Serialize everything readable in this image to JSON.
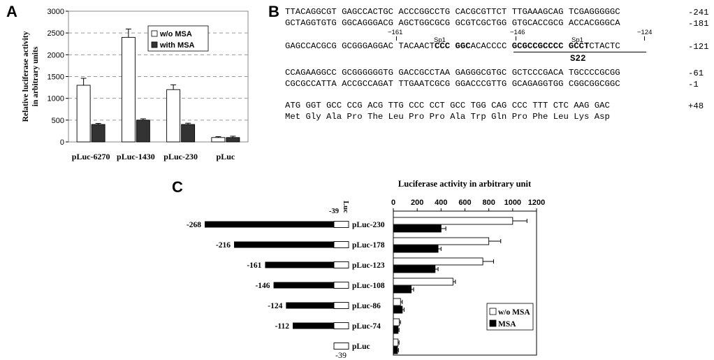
{
  "panels": {
    "a": "A",
    "b": "B",
    "c": "C"
  },
  "chart_data": [
    {
      "type": "bar",
      "panel": "A",
      "ylabel": "Relative luciferase activity in arbitrary units",
      "ylabel_lines": [
        "Relative luciferase activity",
        "in arbitrary units"
      ],
      "categories": [
        "pLuc-6270",
        "pLuc-1430",
        "pLuc-230",
        "pLuc"
      ],
      "series": [
        {
          "name": "w/o MSA",
          "values": [
            1300,
            2400,
            1200,
            100
          ],
          "errors": [
            160,
            190,
            110,
            20
          ],
          "color": "#ffffff"
        },
        {
          "name": "with MSA",
          "values": [
            400,
            500,
            400,
            100
          ],
          "errors": [
            25,
            30,
            30,
            30
          ],
          "color": "#333333"
        }
      ],
      "ylim": [
        0,
        3000
      ],
      "yticks": [
        "0",
        "500",
        "1000",
        "1500",
        "2000",
        "2500",
        "3000"
      ],
      "grid": true,
      "legend": "top-right"
    },
    {
      "type": "bar",
      "orientation": "horizontal",
      "panel": "C",
      "title": "Luciferase activity in arbitrary unit",
      "categories": [
        "pLuc-230",
        "pLuc-178",
        "pLuc-123",
        "pLuc-108",
        "pLuc-86",
        "pLuc-74",
        "pLuc"
      ],
      "series": [
        {
          "name": "w/o MSA",
          "values": [
            1000,
            800,
            750,
            500,
            60,
            50,
            40
          ],
          "errors": [
            120,
            100,
            90,
            20,
            15,
            10,
            8
          ],
          "color": "#ffffff"
        },
        {
          "name": "MSA",
          "values": [
            400,
            375,
            350,
            150,
            75,
            40,
            35
          ],
          "errors": [
            40,
            25,
            25,
            20,
            15,
            8,
            8
          ],
          "color": "#000000"
        }
      ],
      "xlim": [
        0,
        1200
      ],
      "xticks": [
        "0",
        "200",
        "400",
        "600",
        "800",
        "1000",
        "1200"
      ],
      "legend": "bottom-right"
    }
  ],
  "constructs": [
    {
      "start": "-268",
      "start_value": -268,
      "name": "pLuc-230"
    },
    {
      "start": "-216",
      "start_value": -216,
      "name": "pLuc-178"
    },
    {
      "start": "-161",
      "start_value": -161,
      "name": "pLuc-123"
    },
    {
      "start": "-146",
      "start_value": -146,
      "name": "pLuc-108"
    },
    {
      "start": "-124",
      "start_value": -124,
      "name": "pLuc-86"
    },
    {
      "start": "-112",
      "start_value": -112,
      "name": "pLuc-74"
    },
    {
      "start": "",
      "start_value": -39,
      "name": "pLuc"
    }
  ],
  "construct_labels": {
    "top": "-39",
    "luc": "Luc",
    "bottom": "-39"
  },
  "sequence": {
    "line1": "TTACAGGCGT GAGCCACTGC ACCCGGCCTG CACGCGTTCT TTGAAAGCAG TCGAGGGGGC",
    "pos1": "-241",
    "line2": "GCTAGGTGTG GGCAGGGACG AGCTGGCGCG GCGTCGCTGG GTGCACCGCG ACCACGGGCA",
    "pos2": "-181",
    "marks": {
      "m161": "−161",
      "sp1a": "Sp1",
      "m146": "−146",
      "sp1b": "Sp1",
      "m124": "−124"
    },
    "line3a": "GAGCCACGCG GCGGGAGGAC TACAACT",
    "line3b": "CCC GGC",
    "line3c": "ACACCCC ",
    "line3d": "GCGCCGCCCC GCCT",
    "line3e": "CTACTC",
    "pos3": "-121",
    "s22": "S22",
    "line4": "CCAGAAGGCC GCGGGGGGTG GACCGCCTAA GAGGGCGTGC GCTCCCGACA TGCCCCGCGG",
    "pos4": "-61",
    "line5": "CGCGCCATTA ACCGCCAGAT TTGAATCGCG GGACCCGTTG GCAGAGGTGG CGGCGGCGGC",
    "pos5": "-1",
    "line6": "ATG GGT GCC CCG ACG TTG CCC CCT GCC TGG CAG CCC TTT CTC AAG GAC",
    "pos6": "+48",
    "line7": "Met Gly Ala Pro The Leu Pro Pro Ala Trp Gln Pro Phe Leu Lys Asp"
  }
}
